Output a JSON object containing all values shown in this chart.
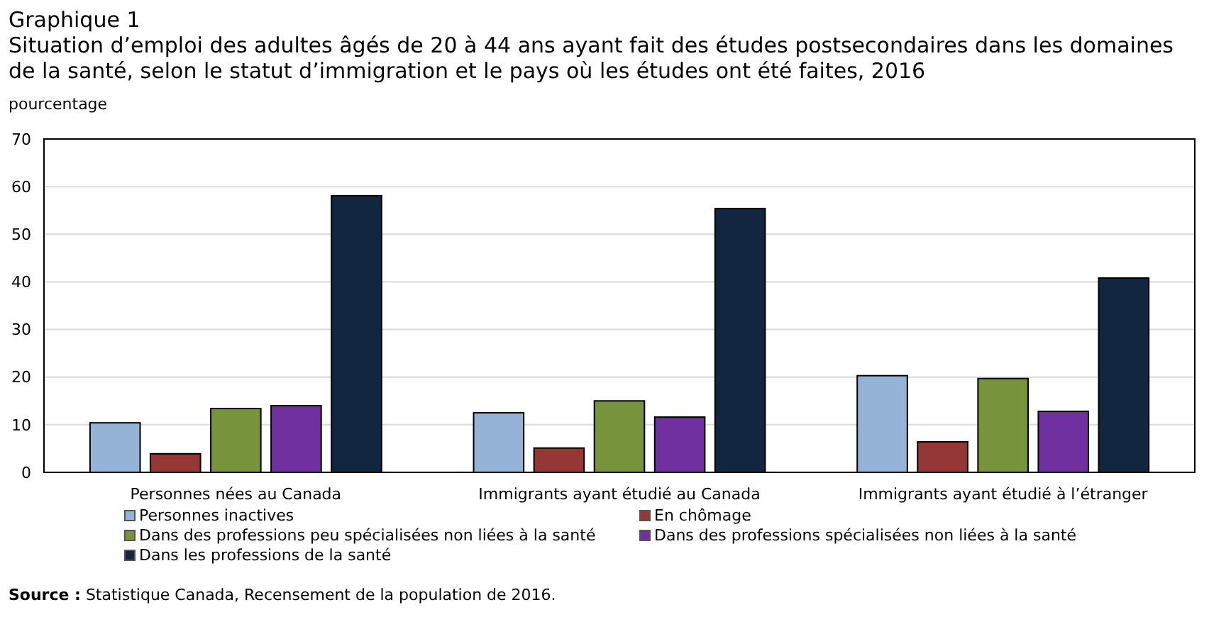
{
  "chart_data": {
    "type": "bar",
    "title": "Graphique 1",
    "subtitle": "Situation d’emploi des adultes âgés de 20 à 44 ans ayant fait des études postsecondaires dans les domaines de la santé, selon le statut d’immigration et le pays où les études ont été faites, 2016",
    "ylabel": "pourcentage",
    "categories": [
      "Personnes nées au Canada",
      "Immigrants ayant étudié au Canada",
      "Immigrants ayant étudié à l’étranger"
    ],
    "series": [
      {
        "name": "Personnes inactives",
        "color": "#95b3d7",
        "values": [
          10.4,
          12.5,
          20.3
        ]
      },
      {
        "name": "En chômage",
        "color": "#953735",
        "values": [
          3.9,
          5.1,
          6.4
        ]
      },
      {
        "name": "Dans des professions peu spécialisées non liées à la santé",
        "color": "#77933c",
        "values": [
          13.4,
          15.0,
          19.7
        ]
      },
      {
        "name": "Dans des professions spécialisées non liées à la santé",
        "color": "#7030a0",
        "values": [
          14.0,
          11.6,
          12.8
        ]
      },
      {
        "name": "Dans les professions de la santé",
        "color": "#12263f",
        "values": [
          58.1,
          55.4,
          40.8
        ]
      }
    ],
    "ylim": [
      0,
      70
    ],
    "yticks": [
      0,
      10,
      20,
      30,
      40,
      50,
      60,
      70
    ],
    "grid": "y",
    "legend": "bottom",
    "annotations": [
      "Source : Statistique Canada, Recensement de la population de 2016."
    ]
  }
}
